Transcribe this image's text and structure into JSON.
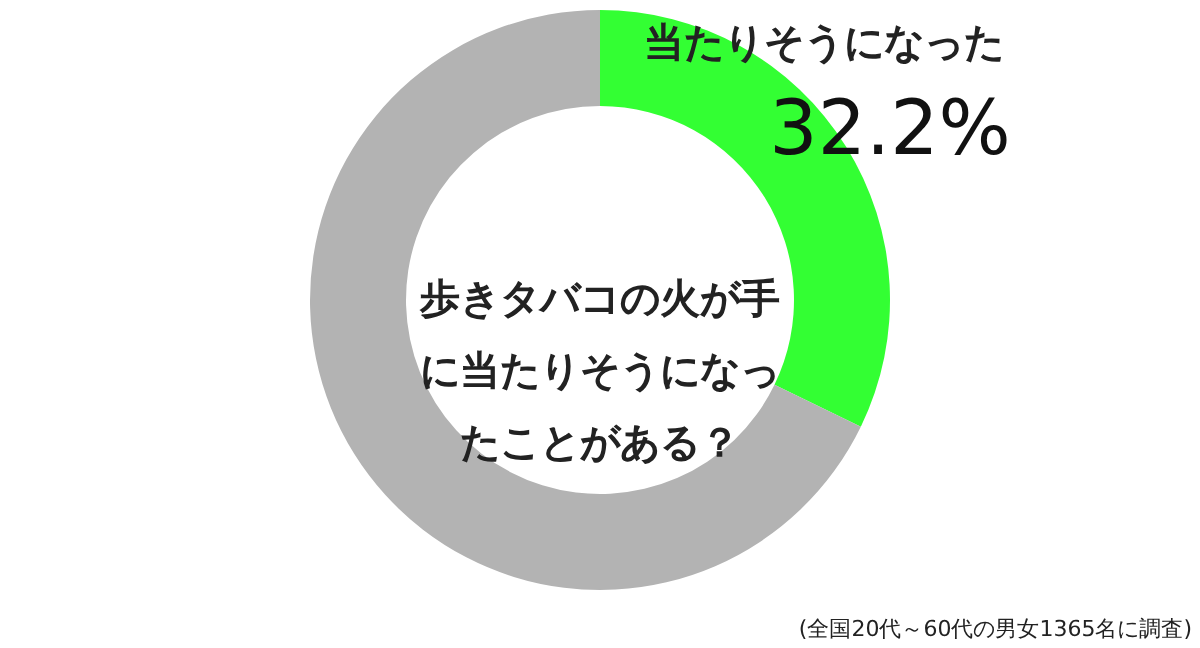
{
  "chart_data": {
    "type": "donut",
    "title": "歩きタバコの火が手に当たりそうになったことがある？",
    "categories": [
      "当たりそうになった",
      null
    ],
    "values": [
      32.2,
      67.8
    ],
    "colors": [
      "#33ff33",
      "#b3b3b3"
    ],
    "value_labels": [
      "32.2%",
      null
    ],
    "annotations": [
      "(全国20代～60代の男女1365名に調査)"
    ]
  }
}
